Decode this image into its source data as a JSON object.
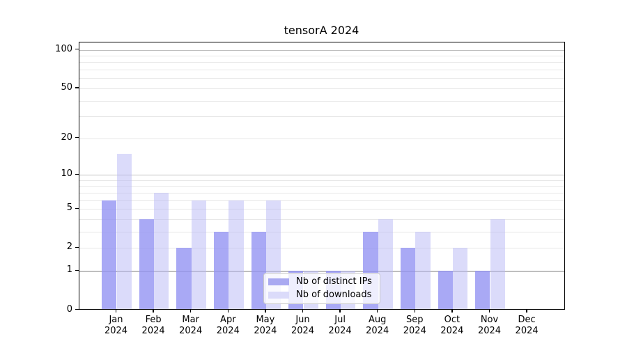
{
  "chart_data": {
    "type": "bar",
    "title": "tensorA 2024",
    "categories": [
      "Jan",
      "Feb",
      "Mar",
      "Apr",
      "May",
      "Jun",
      "Jul",
      "Aug",
      "Sep",
      "Oct",
      "Nov",
      "Dec"
    ],
    "category_year": "2024",
    "series": [
      {
        "name": "Nb of distinct IPs",
        "values": [
          6,
          4,
          2,
          3,
          3,
          1,
          1,
          3,
          2,
          1,
          1,
          0
        ],
        "bar_color": "rgba(148,148,243,0.8)",
        "swatch_color": "#a9a9f1"
      },
      {
        "name": "Nb of downloads",
        "values": [
          15,
          7,
          6,
          6,
          6,
          1,
          1,
          4,
          3,
          2,
          4,
          0
        ],
        "bar_color": "rgba(183,183,246,0.5)",
        "swatch_color": "#dbdbfa"
      }
    ],
    "yscale": "log1p",
    "ylim": [
      0,
      114
    ],
    "yticks_labeled": [
      0,
      1,
      2,
      5,
      10,
      20,
      50,
      100
    ],
    "grid_major": [
      1,
      10,
      100
    ],
    "grid_minor": [
      2,
      3,
      4,
      5,
      6,
      7,
      8,
      9,
      20,
      30,
      40,
      50,
      60,
      70,
      80,
      90
    ],
    "xlabel": "",
    "ylabel": "",
    "grid": true,
    "legend_position": "lower center"
  },
  "colors": {
    "background": "#ffffff",
    "spine": "#000000",
    "text": "#000000",
    "grid_major": "#bfbfbf",
    "grid_minor": "#e7e7e7",
    "legend_border": "#c9c9c9"
  }
}
